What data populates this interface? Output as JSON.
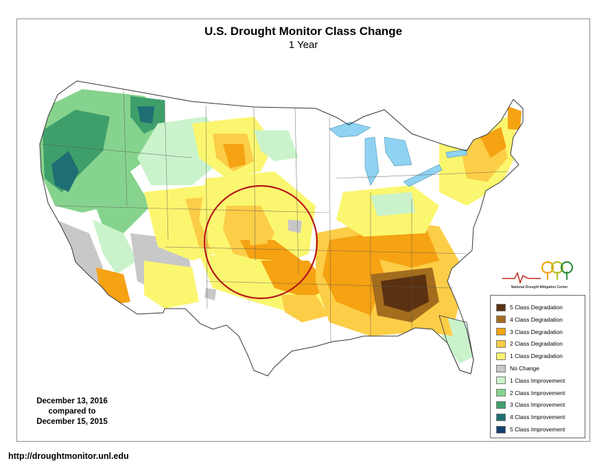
{
  "title": "U.S. Drought Monitor Class Change",
  "subtitle": "1 Year",
  "date_box": {
    "line1": "December 13, 2016",
    "line2": "compared to",
    "line3": "December 15, 2015"
  },
  "url": "http://droughtmonitor.unl.edu",
  "logo_text": "National Drought Mitigation Center",
  "legend": [
    {
      "label": "5 Class Degradation",
      "color": "#5a3110"
    },
    {
      "label": "4 Class Degradation",
      "color": "#a36d1e"
    },
    {
      "label": "3 Class Degradation",
      "color": "#f5a213"
    },
    {
      "label": "2 Class Degradation",
      "color": "#fccd47"
    },
    {
      "label": "1 Class Degradation",
      "color": "#fbf66f"
    },
    {
      "label": "No Change",
      "color": "#c8c8c8"
    },
    {
      "label": "1 Class Improvement",
      "color": "#caf3cc"
    },
    {
      "label": "2 Class Improvement",
      "color": "#86d38d"
    },
    {
      "label": "3 Class Improvement",
      "color": "#3f9f6b"
    },
    {
      "label": "4 Class Improvement",
      "color": "#1f6e73"
    },
    {
      "label": "5 Class Improvement",
      "color": "#123f6e"
    }
  ],
  "annotation": {
    "shape": "circle",
    "color": "#b5141b"
  },
  "water_color": "#8fd2f1"
}
